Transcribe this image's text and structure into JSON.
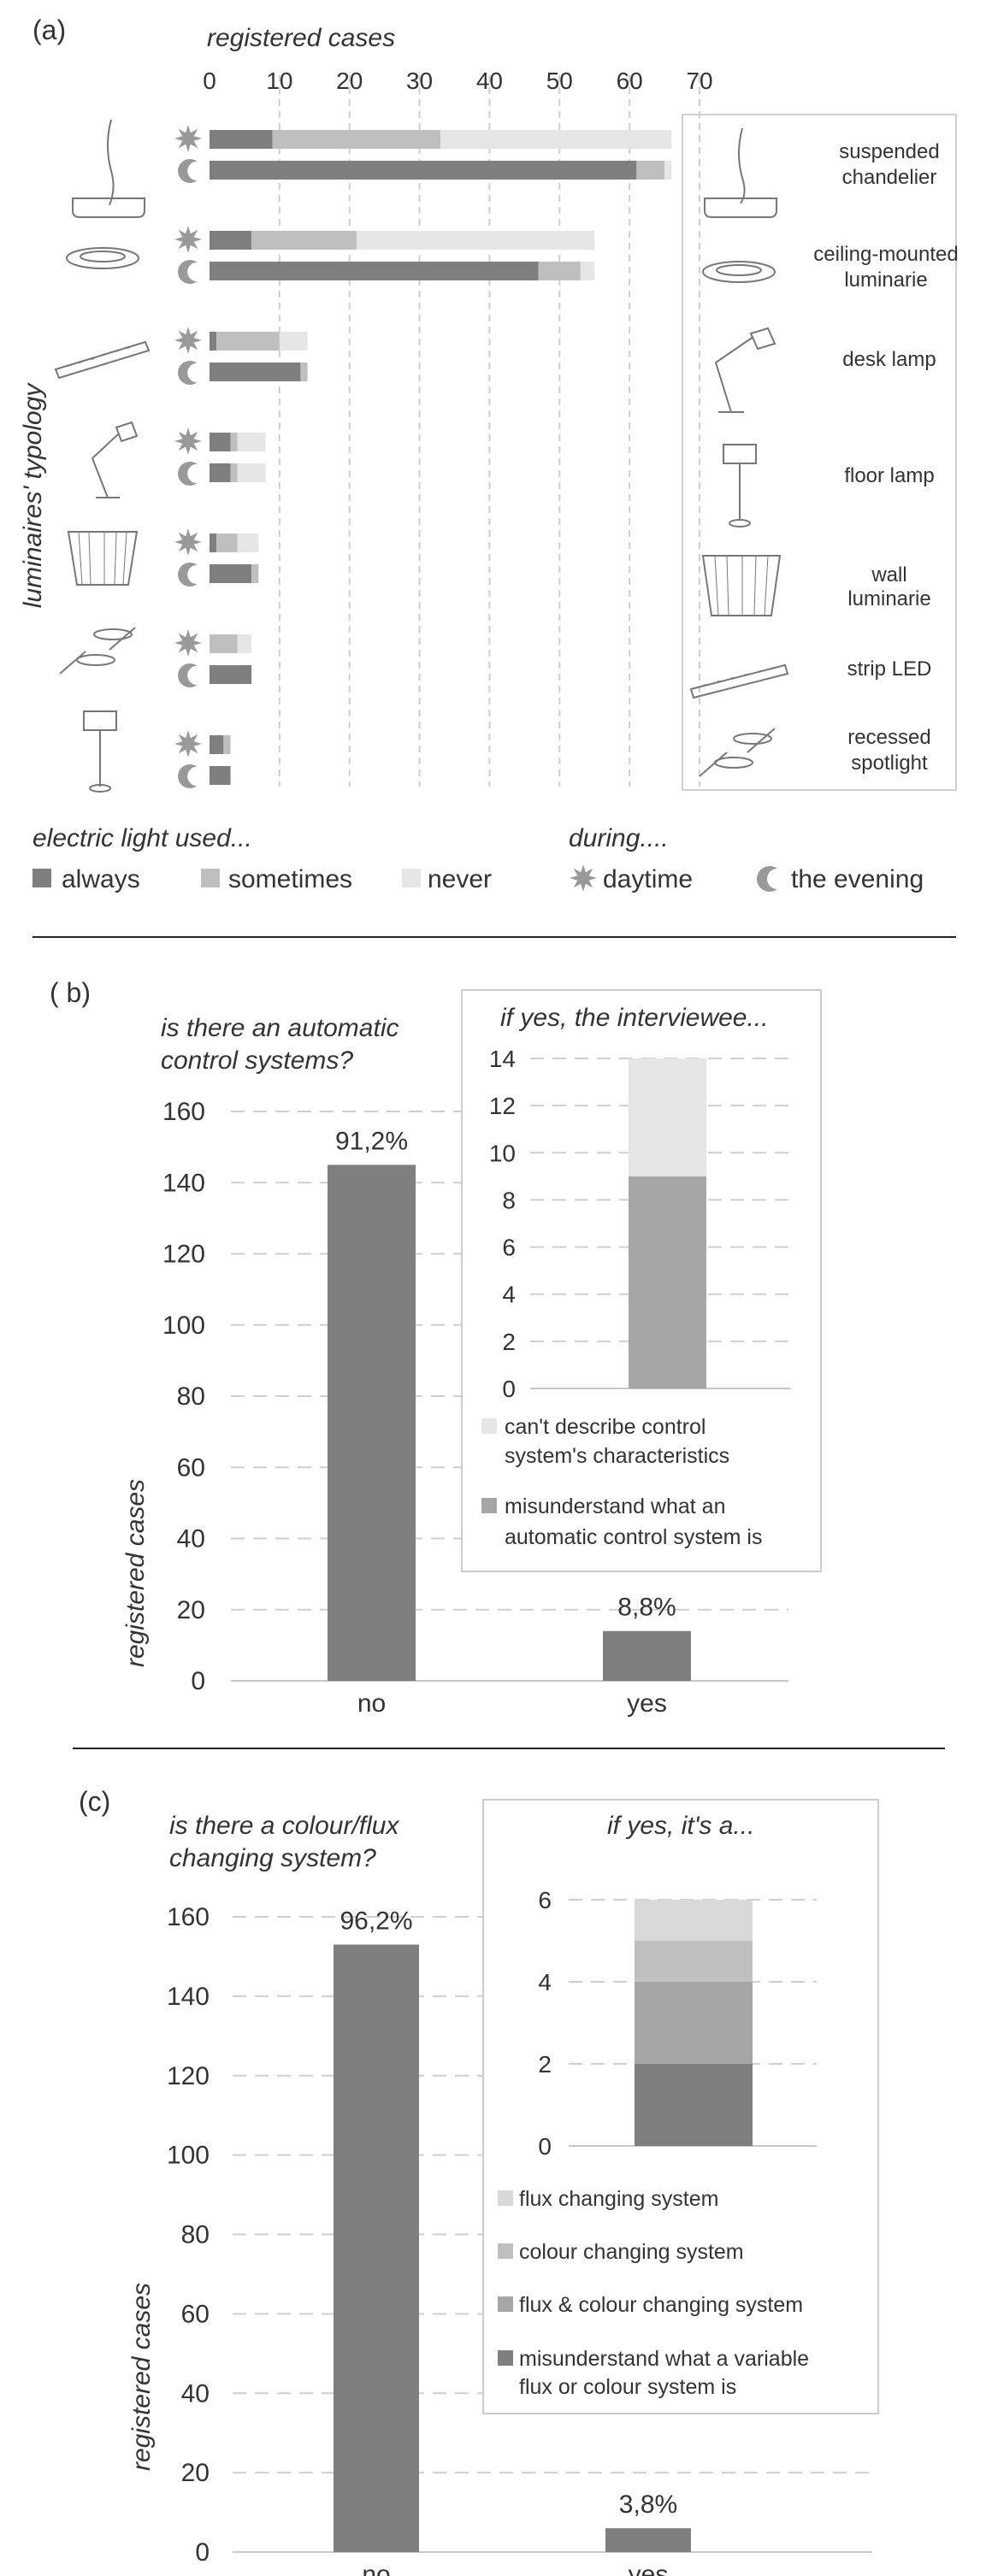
{
  "colors": {
    "always": "#7f7f7f",
    "sometimes": "#bfbfbf",
    "never": "#e6e6e6",
    "grid": "#cfcfcf",
    "rule": "#222222",
    "icon": "#999999",
    "lc_misunderstand": "#7f7f7f",
    "lc_both": "#a6a6a6",
    "lc_colour": "#bfbfbf",
    "lc_flux": "#d9d9d9"
  },
  "panel_a": {
    "label": "(a)",
    "x_title": "registered cases",
    "y_title": "luminaires' typology",
    "legend_used_title": "electric light used...",
    "legend_during_title": "during....",
    "legend_always": "always",
    "legend_sometimes": "sometimes",
    "legend_never": "never",
    "legend_daytime": "daytime",
    "legend_evening": "the evening",
    "types_label": {
      "suspended": "suspended chandelier",
      "ceiling": "ceiling-mounted luminarie",
      "desk": "desk lamp",
      "floor": "floor lamp",
      "wall": "wall luminarie",
      "strip": "strip LED",
      "recessed": "recessed spotlight"
    }
  },
  "panel_b": {
    "label": "( b)",
    "title": "is there an automatic control systems?",
    "ylabel": "registered cases",
    "inset_title": "if yes, the interviewee...",
    "inset_legend_1": "can't describe control system's characteristics",
    "inset_legend_2": "misunderstand what an automatic control system is"
  },
  "panel_c": {
    "label": "(c)",
    "title": "is there a colour/flux changing system?",
    "ylabel": "registered cases",
    "inset_title": "if yes, it's a...",
    "inset_legend_1": "flux changing system",
    "inset_legend_2": "colour changing system",
    "inset_legend_3": "flux & colour changing system",
    "inset_legend_4": "misunderstand what a variable flux or colour system is"
  },
  "chart_data": [
    {
      "type": "bar",
      "orientation": "horizontal",
      "stacked": true,
      "title": "registered cases",
      "ylabel": "luminaires' typology",
      "xlim": [
        0,
        70
      ],
      "xticks": [
        0,
        10,
        20,
        30,
        40,
        50,
        60,
        70
      ],
      "grid": true,
      "categories": [
        {
          "type": "suspended",
          "period": "daytime"
        },
        {
          "type": "suspended",
          "period": "the evening"
        },
        {
          "type": "ceiling",
          "period": "daytime"
        },
        {
          "type": "ceiling",
          "period": "the evening"
        },
        {
          "type": "desk",
          "period": "daytime"
        },
        {
          "type": "desk",
          "period": "the evening"
        },
        {
          "type": "floor",
          "period": "daytime"
        },
        {
          "type": "floor",
          "period": "the evening"
        },
        {
          "type": "wall",
          "period": "daytime"
        },
        {
          "type": "wall",
          "period": "the evening"
        },
        {
          "type": "strip",
          "period": "daytime"
        },
        {
          "type": "strip",
          "period": "the evening"
        },
        {
          "type": "recessed",
          "period": "daytime"
        },
        {
          "type": "recessed",
          "period": "the evening"
        }
      ],
      "series": [
        {
          "name": "always",
          "values": [
            9,
            61,
            6,
            47,
            1,
            13,
            3,
            3,
            1,
            6,
            0,
            6,
            2,
            3
          ]
        },
        {
          "name": "sometimes",
          "values": [
            24,
            4,
            15,
            6,
            9,
            1,
            1,
            1,
            3,
            1,
            4,
            0,
            1,
            0
          ]
        },
        {
          "name": "never",
          "values": [
            33,
            1,
            34,
            2,
            4,
            0,
            4,
            4,
            3,
            0,
            2,
            0,
            0,
            0
          ]
        }
      ],
      "legend_position": "bottom"
    },
    {
      "type": "bar",
      "title": "is there an automatic control systems?",
      "ylabel": "registered cases",
      "categories": [
        "no",
        "yes"
      ],
      "values": [
        145,
        14
      ],
      "data_labels": [
        "91,2%",
        "8,8%"
      ],
      "ylim": [
        0,
        160
      ],
      "yticks": [
        0,
        20,
        40,
        60,
        80,
        100,
        120,
        140,
        160
      ],
      "grid": true
    },
    {
      "type": "bar",
      "stacked": true,
      "title": "if yes, the interviewee...",
      "ylim": [
        0,
        14
      ],
      "yticks": [
        0,
        2,
        4,
        6,
        8,
        10,
        12,
        14
      ],
      "grid": true,
      "series": [
        {
          "name": "misunderstand what an automatic control system is",
          "values": [
            9
          ]
        },
        {
          "name": "can't describe control system's characteristics",
          "values": [
            5
          ]
        }
      ]
    },
    {
      "type": "bar",
      "title": "is there a colour/flux changing system?",
      "ylabel": "registered cases",
      "categories": [
        "no",
        "yes"
      ],
      "values": [
        153,
        6
      ],
      "data_labels": [
        "96,2%",
        "3,8%"
      ],
      "ylim": [
        0,
        160
      ],
      "yticks": [
        0,
        20,
        40,
        60,
        80,
        100,
        120,
        140,
        160
      ],
      "grid": true
    },
    {
      "type": "bar",
      "stacked": true,
      "title": "if yes, it's a...",
      "ylim": [
        0,
        6
      ],
      "yticks": [
        0,
        2,
        4,
        6
      ],
      "grid": true,
      "series": [
        {
          "name": "misunderstand what a variable flux or colour system is",
          "values": [
            2
          ]
        },
        {
          "name": "flux & colour changing system",
          "values": [
            2
          ]
        },
        {
          "name": "colour changing system",
          "values": [
            1
          ]
        },
        {
          "name": "flux changing system",
          "values": [
            1
          ]
        }
      ]
    }
  ]
}
